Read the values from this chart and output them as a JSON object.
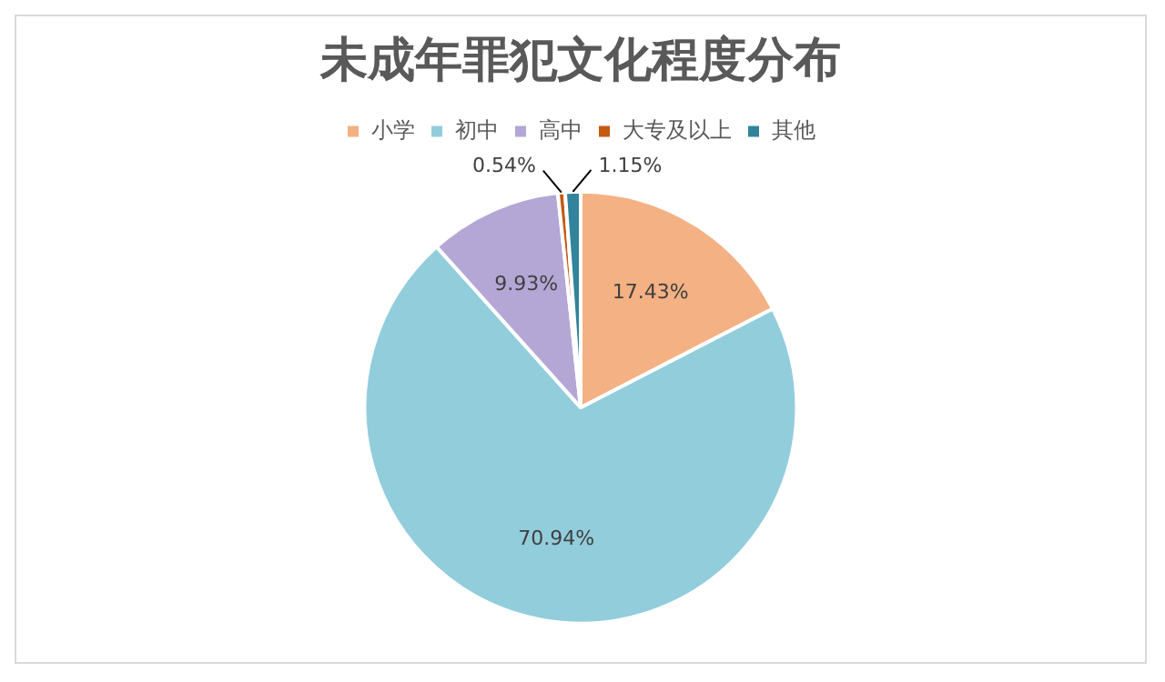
{
  "chart_data": {
    "type": "pie",
    "title": "未成年罪犯文化程度分布",
    "categories": [
      "小学",
      "初中",
      "高中",
      "大专及以上",
      "其他"
    ],
    "values": [
      17.43,
      70.94,
      9.93,
      0.54,
      1.15
    ],
    "colors": [
      "#f4b183",
      "#92cddc",
      "#b4a7d6",
      "#c55a11",
      "#31849b"
    ],
    "value_labels": [
      "17.43%",
      "70.94%",
      "9.93%",
      "0.54%",
      "1.15%"
    ],
    "legend": "top"
  }
}
